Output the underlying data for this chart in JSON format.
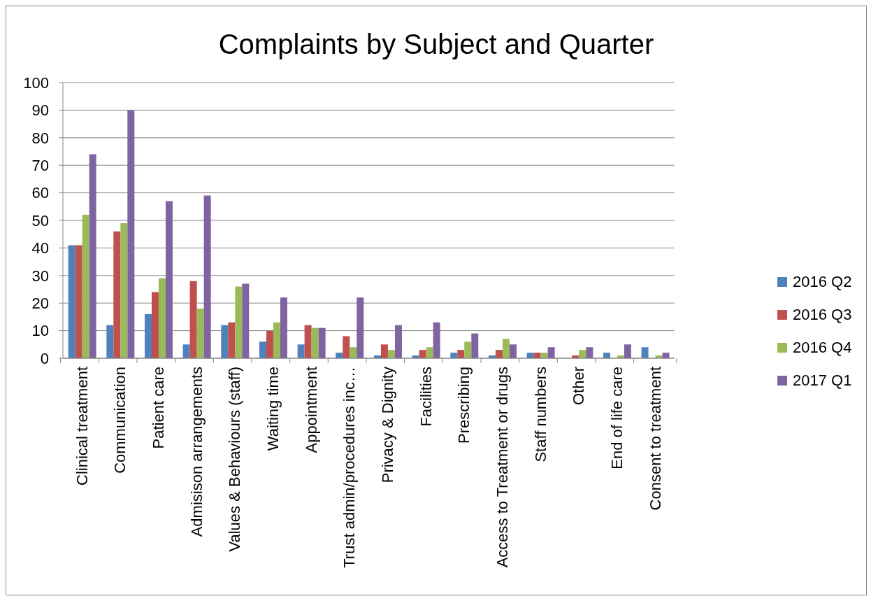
{
  "chart_data": {
    "type": "bar",
    "title": "Complaints by Subject and Quarter",
    "categories": [
      "Clinical treatment",
      "Communication",
      "Patient care",
      "Admisison arrangements",
      "Values & Behaviours (staff)",
      "Waiting time",
      "Appointment",
      "Trust admin/procedures inc…",
      "Privacy & Dignity",
      "Facilities",
      "Prescribing",
      "Access to Treatment or drugs",
      "Staff numbers",
      "Other",
      "End of life care",
      "Consent to treatment"
    ],
    "series": [
      {
        "name": "2016 Q2",
        "color": "#4f81bd",
        "values": [
          41,
          12,
          16,
          5,
          12,
          6,
          5,
          2,
          1,
          1,
          2,
          1,
          2,
          0,
          2,
          4
        ]
      },
      {
        "name": "2016 Q3",
        "color": "#c0504d",
        "values": [
          41,
          46,
          24,
          28,
          13,
          10,
          12,
          8,
          5,
          3,
          3,
          3,
          2,
          1,
          0,
          0
        ]
      },
      {
        "name": "2016 Q4",
        "color": "#9bbb59",
        "values": [
          52,
          49,
          29,
          18,
          26,
          13,
          11,
          4,
          3,
          4,
          6,
          7,
          2,
          3,
          1,
          1
        ]
      },
      {
        "name": "2017 Q1",
        "color": "#8064a2",
        "values": [
          74,
          90,
          57,
          59,
          27,
          22,
          11,
          22,
          12,
          13,
          9,
          5,
          4,
          4,
          5,
          2
        ]
      }
    ],
    "ylim": [
      0,
      100
    ],
    "yticks": [
      0,
      10,
      20,
      30,
      40,
      50,
      60,
      70,
      80,
      90,
      100
    ],
    "grid": "y",
    "legend": "right"
  }
}
